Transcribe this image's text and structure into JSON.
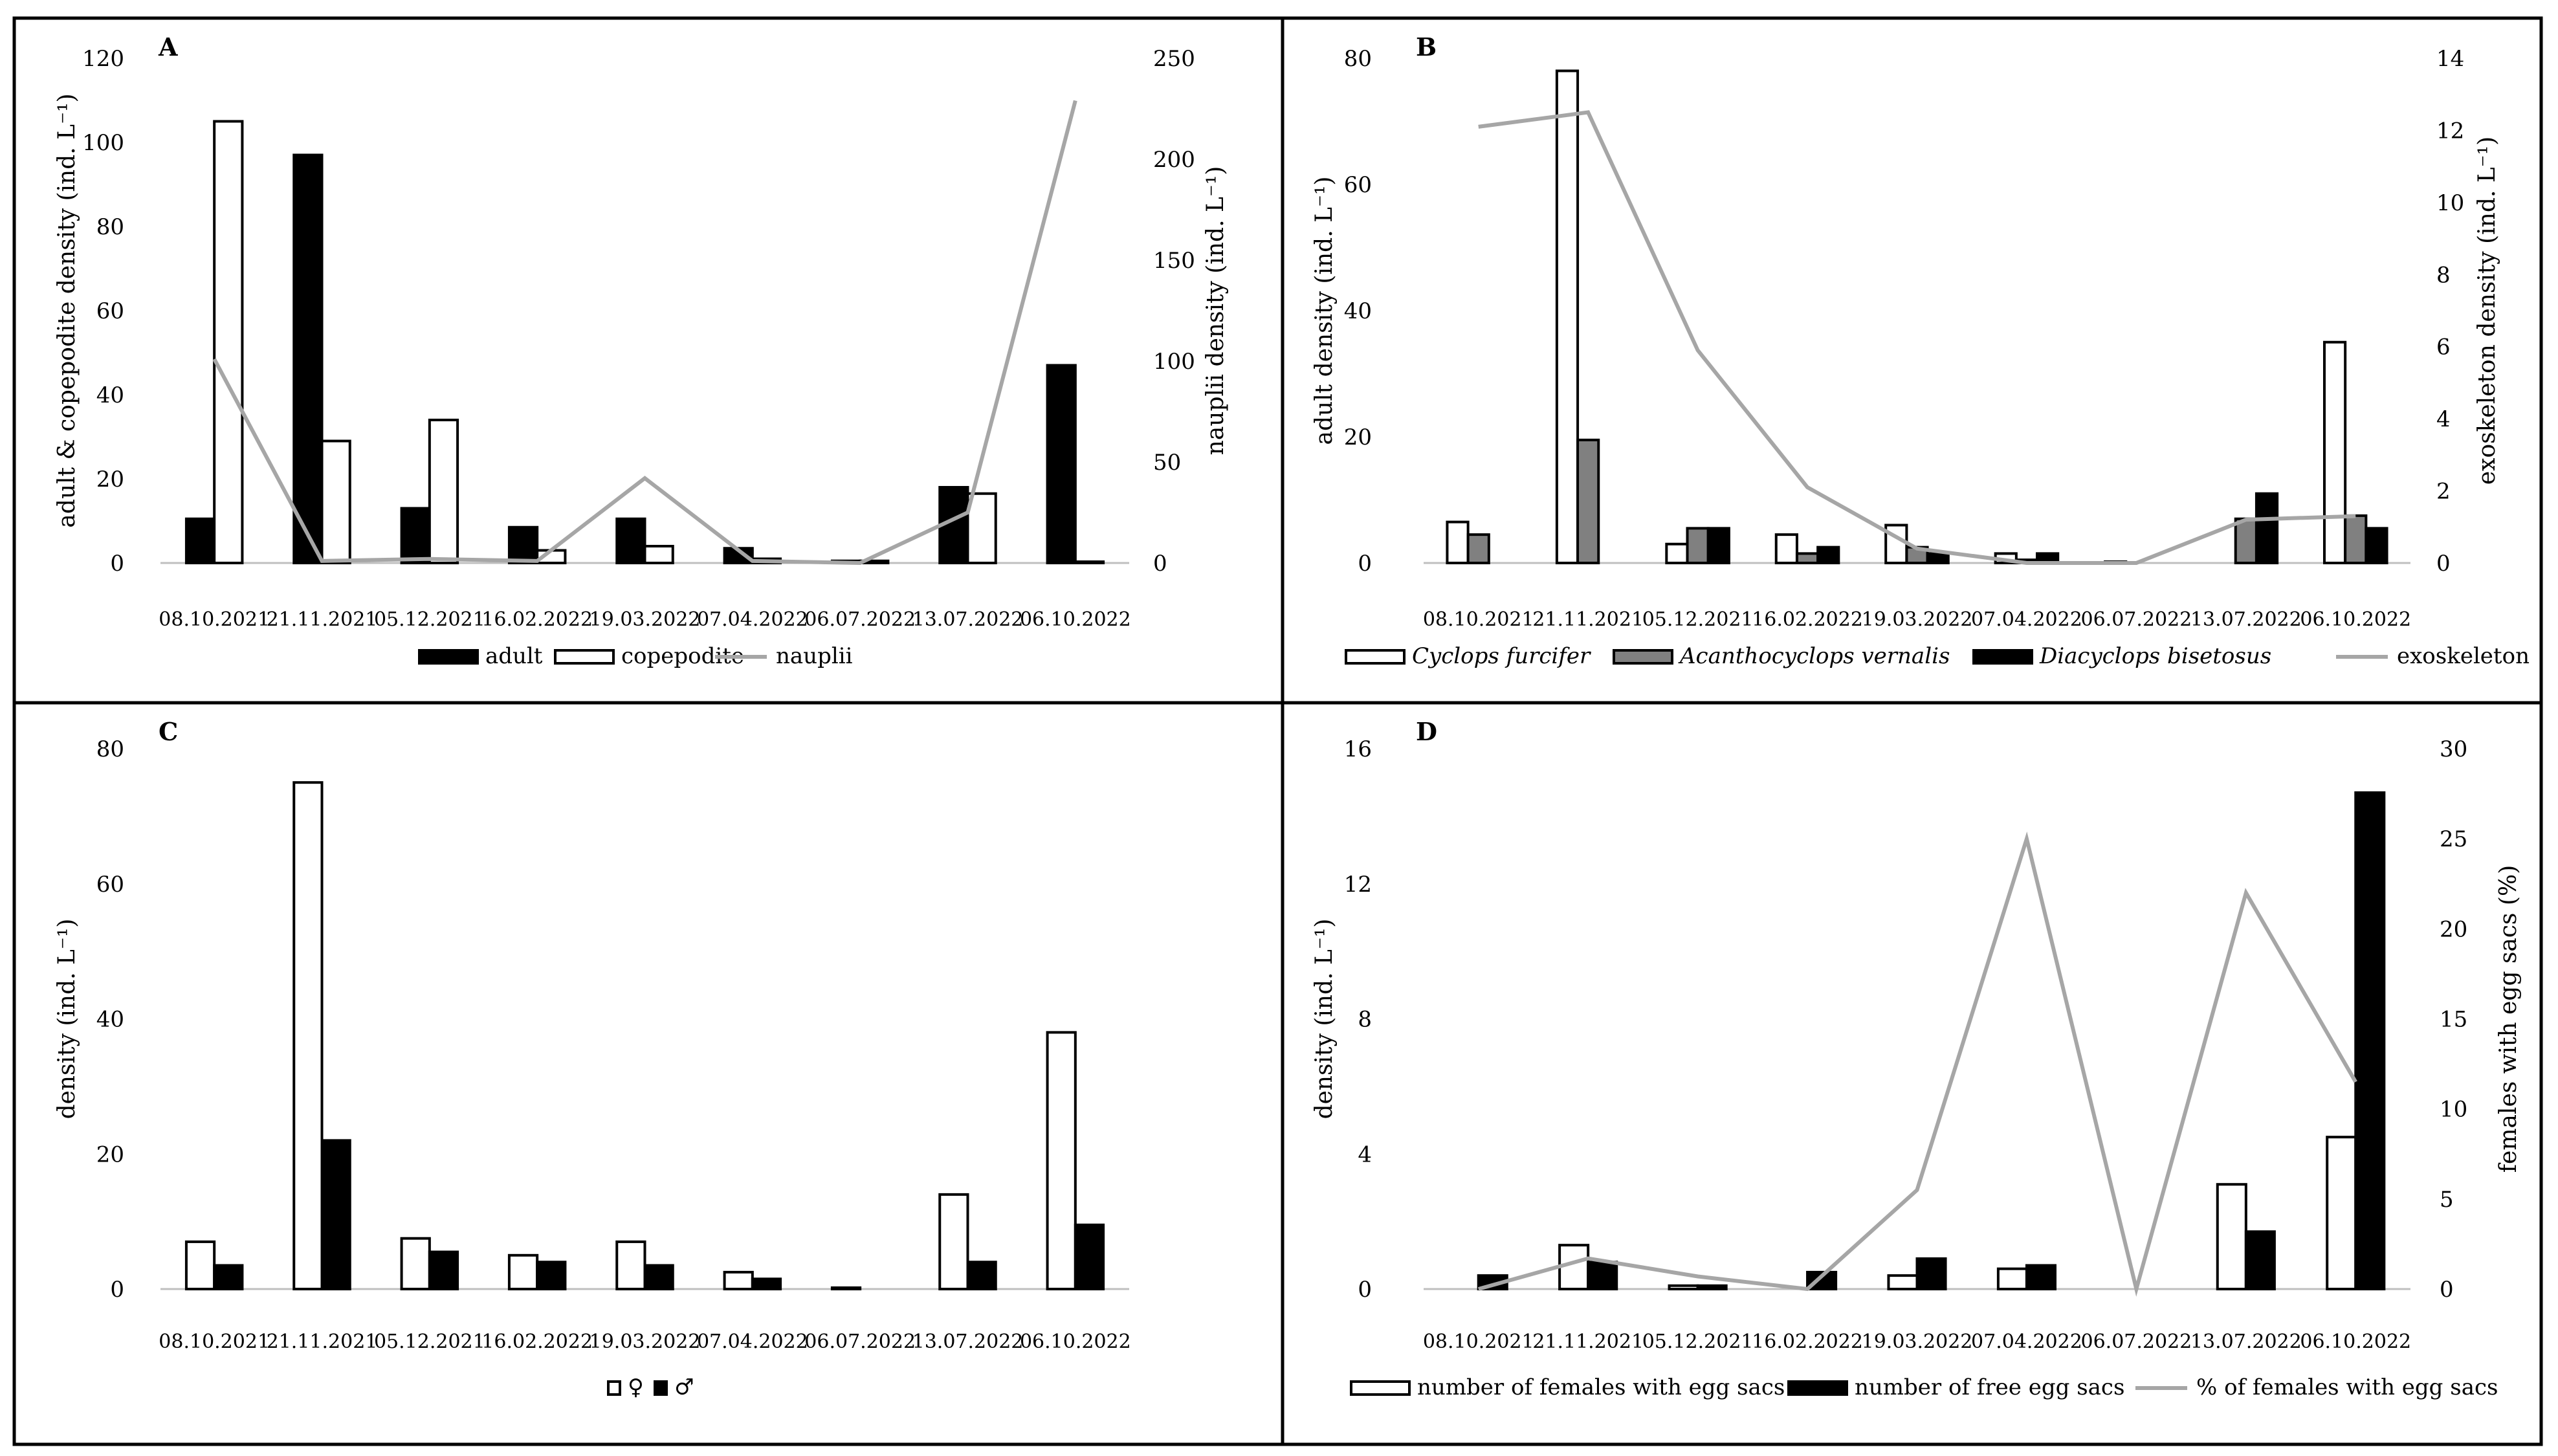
{
  "colors": {
    "black": "#000000",
    "white": "#ffffff",
    "gray": "#808080",
    "line": "#a6a6a6"
  },
  "chart_data": [
    {
      "panel": "A",
      "type": "bar+line",
      "categories": [
        "08.10.2021",
        "21.11.2021",
        "05.12.2021",
        "16.02.2022",
        "19.03.2022",
        "07.04.2022",
        "06.07.2022",
        "13.07.2022",
        "06.10.2022"
      ],
      "ylabel": "adult & copepodite density (ind. L⁻¹)",
      "y2label": "nauplii density (ind. L⁻¹)",
      "ylim": [
        0,
        120
      ],
      "yticks": [
        0,
        20,
        40,
        60,
        80,
        100,
        120
      ],
      "y2lim": [
        0,
        250
      ],
      "y2ticks": [
        0,
        50,
        100,
        150,
        200,
        250
      ],
      "bars": [
        {
          "name": "adult",
          "fill": "black",
          "values": [
            10.5,
            97,
            13,
            8.5,
            10.5,
            3.5,
            0.5,
            18,
            47
          ]
        },
        {
          "name": "copepodite",
          "fill": "white",
          "values": [
            105,
            29,
            34,
            3,
            4,
            1,
            0.5,
            16.5,
            0.3
          ]
        }
      ],
      "line": {
        "name": "nauplii",
        "values": [
          101,
          1,
          2,
          1,
          42,
          1,
          0,
          25,
          229
        ]
      },
      "legend": [
        "adult",
        "copepodite",
        "nauplii"
      ]
    },
    {
      "panel": "B",
      "type": "bar+line",
      "categories": [
        "08.10.2021",
        "21.11.2021",
        "05.12.2021",
        "16.02.2022",
        "19.03.2022",
        "07.04.2022",
        "06.07.2022",
        "13.07.2022",
        "06.10.2022"
      ],
      "ylabel": "adult density (ind. L⁻¹)",
      "y2label": "exoskeleton density (ind. L⁻¹)",
      "ylim": [
        0,
        80
      ],
      "yticks": [
        0,
        20,
        40,
        60,
        80
      ],
      "y2lim": [
        0,
        14
      ],
      "y2ticks": [
        0,
        2,
        4,
        6,
        8,
        10,
        12,
        14
      ],
      "bars": [
        {
          "name": "Cyclops furcifer",
          "fill": "white",
          "values": [
            6.5,
            78,
            3,
            4.5,
            6,
            1.5,
            0.2,
            0,
            35
          ]
        },
        {
          "name": "Acanthocyclops vernalis",
          "fill": "gray",
          "values": [
            4.5,
            19.5,
            5.5,
            1.5,
            2.5,
            0.5,
            0,
            7,
            7.5
          ]
        },
        {
          "name": "Diacyclops bisetosus",
          "fill": "black",
          "values": [
            0,
            0,
            5.5,
            2.5,
            1.5,
            1.5,
            0,
            11,
            5.5
          ]
        }
      ],
      "line": {
        "name": "exoskeleton",
        "values": [
          12.1,
          12.5,
          5.9,
          2.1,
          0.4,
          0,
          0,
          1.2,
          1.3
        ]
      },
      "legend": [
        "Cyclops furcifer",
        "Acanthocyclops vernalis",
        "Diacyclops bisetosus",
        "exoskeleton"
      ]
    },
    {
      "panel": "C",
      "type": "bar",
      "categories": [
        "08.10.2021",
        "21.11.2021",
        "05.12.2021",
        "16.02.2022",
        "19.03.2022",
        "07.04.2022",
        "06.07.2022",
        "13.07.2022",
        "06.10.2022"
      ],
      "ylabel": "density (ind. L⁻¹)",
      "ylim": [
        0,
        80
      ],
      "yticks": [
        0,
        20,
        40,
        60,
        80
      ],
      "bars": [
        {
          "name": "♀",
          "fill": "white",
          "values": [
            7,
            75,
            7.5,
            5,
            7,
            2.5,
            0.2,
            14,
            38
          ]
        },
        {
          "name": "♂",
          "fill": "black",
          "values": [
            3.5,
            22,
            5.5,
            4,
            3.5,
            1.5,
            0,
            4,
            9.5
          ]
        }
      ],
      "legend": [
        "♀",
        "♂"
      ]
    },
    {
      "panel": "D",
      "type": "bar+line",
      "categories": [
        "08.10.2021",
        "21.11.2021",
        "05.12.2021",
        "16.02.2022",
        "19.03.2022",
        "07.04.2022",
        "06.07.2022",
        "13.07.2022",
        "06.10.2022"
      ],
      "ylabel": "density (ind. L⁻¹)",
      "y2label": "females with egg sacs (%)",
      "ylim": [
        0,
        16
      ],
      "yticks": [
        0,
        4,
        8,
        12,
        16
      ],
      "y2lim": [
        0,
        30
      ],
      "y2ticks": [
        0,
        5,
        10,
        15,
        20,
        25,
        30
      ],
      "bars": [
        {
          "name": "number of females with egg sacs",
          "fill": "white",
          "values": [
            0,
            1.3,
            0.1,
            0,
            0.4,
            0.6,
            0,
            3.1,
            4.5
          ]
        },
        {
          "name": "number of free egg sacs",
          "fill": "black",
          "values": [
            0.4,
            0.8,
            0.1,
            0.5,
            0.9,
            0.7,
            0,
            1.7,
            14.7
          ]
        }
      ],
      "line": {
        "name": "% of females with egg sacs",
        "values": [
          0,
          1.7,
          0.7,
          0,
          5.5,
          25,
          0,
          22,
          11.5
        ]
      },
      "legend": [
        "number of females with egg sacs",
        "number of free egg sacs",
        "% of females with egg sacs"
      ]
    }
  ]
}
